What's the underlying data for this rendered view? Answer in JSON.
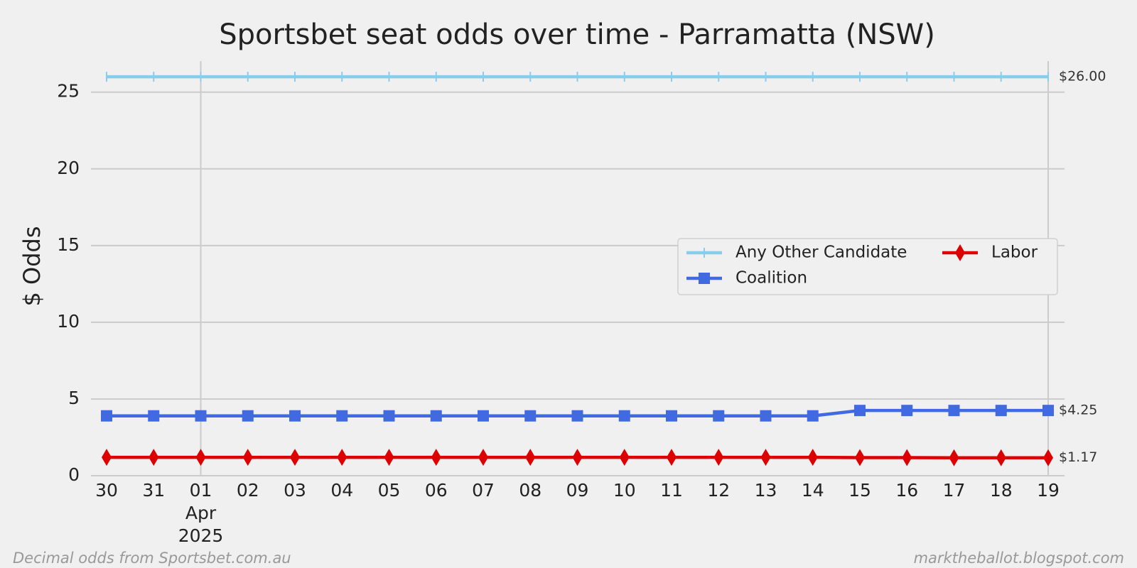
{
  "chart_data": {
    "type": "line",
    "title": "Sportsbet seat odds over time - Parramatta (NSW)",
    "ylabel": "$ Odds",
    "categories": [
      "30",
      "31",
      "01",
      "02",
      "03",
      "04",
      "05",
      "06",
      "07",
      "08",
      "09",
      "10",
      "11",
      "12",
      "13",
      "14",
      "15",
      "16",
      "17",
      "18",
      "19"
    ],
    "x_sublabel_index": 2,
    "x_sublabels": [
      "Apr",
      "2025"
    ],
    "x_grid_indices": [
      2,
      20
    ],
    "series": [
      {
        "name": "Any Other Candidate",
        "color": "#87ceeb",
        "marker": "tick",
        "end_label": "$26.00",
        "values": [
          26,
          26,
          26,
          26,
          26,
          26,
          26,
          26,
          26,
          26,
          26,
          26,
          26,
          26,
          26,
          26,
          26,
          26,
          26,
          26,
          26
        ]
      },
      {
        "name": "Coalition",
        "color": "#4169e1",
        "marker": "square",
        "end_label": "$4.25",
        "values": [
          3.9,
          3.9,
          3.9,
          3.9,
          3.9,
          3.9,
          3.9,
          3.9,
          3.9,
          3.9,
          3.9,
          3.9,
          3.9,
          3.9,
          3.9,
          3.9,
          4.25,
          4.25,
          4.25,
          4.25,
          4.25
        ]
      },
      {
        "name": "Labor",
        "color": "#dd0000",
        "marker": "diamond",
        "end_label": "$1.17",
        "values": [
          1.2,
          1.2,
          1.2,
          1.2,
          1.2,
          1.2,
          1.2,
          1.2,
          1.2,
          1.2,
          1.2,
          1.2,
          1.2,
          1.2,
          1.2,
          1.2,
          1.18,
          1.18,
          1.17,
          1.17,
          1.17
        ]
      }
    ],
    "ylim": [
      0,
      27.3
    ],
    "yticks": [
      0,
      5,
      10,
      15,
      20,
      25
    ],
    "grid": true,
    "legend": "center right",
    "footer_left": "Decimal odds from Sportsbet.com.au",
    "footer_right": "marktheballot.blogspot.com"
  }
}
